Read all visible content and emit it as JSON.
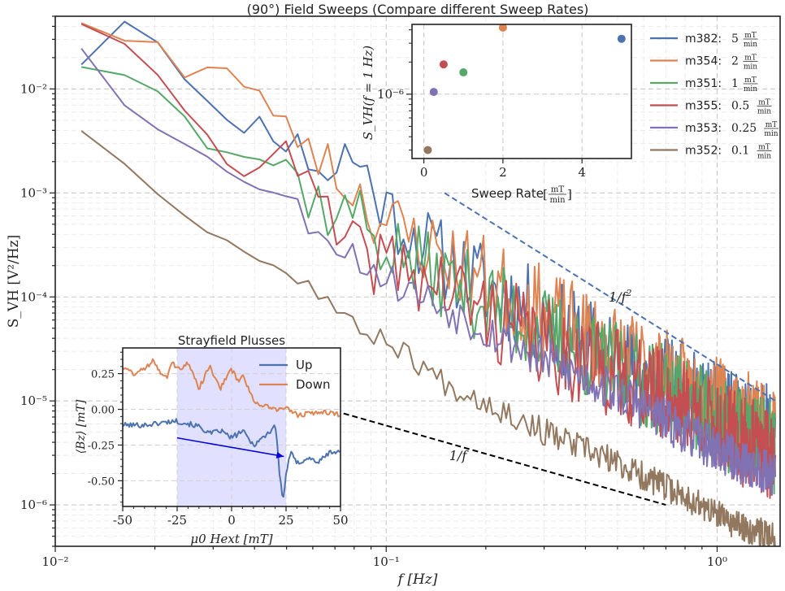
{
  "chart_data": [
    {
      "id": "main",
      "type": "line",
      "title": "(90°) Field Sweeps (Compare different Sweep Rates)",
      "xlabel": "f [Hz]",
      "ylabel": "S_VH [V²/Hz]",
      "xscale": "log",
      "yscale": "log",
      "xlim": [
        0.01,
        1.55
      ],
      "ylim": [
        4e-07,
        0.05
      ],
      "xticks": [
        {
          "value": 0.01,
          "label": "10⁻²"
        },
        {
          "value": 0.1,
          "label": "10⁻¹"
        },
        {
          "value": 1,
          "label": "10⁰"
        }
      ],
      "yticks": [
        {
          "value": 1e-06,
          "label": "10⁻⁶"
        },
        {
          "value": 1e-05,
          "label": "10⁻⁵"
        },
        {
          "value": 0.0001,
          "label": "10⁻⁴"
        },
        {
          "value": 0.001,
          "label": "10⁻³"
        },
        {
          "value": 0.01,
          "label": "10⁻²"
        }
      ],
      "grid": true,
      "legend_position": "top-right",
      "series": [
        {
          "name": "m382: 5 mT/min",
          "label": "m382:",
          "rate": "5",
          "color": "#4c72b0",
          "anchors": [
            [
              0.012,
              0.018
            ],
            [
              0.016,
              0.048
            ],
            [
              0.022,
              0.025
            ],
            [
              0.025,
              0.013
            ],
            [
              0.03,
              0.006
            ],
            [
              0.035,
              0.0037
            ],
            [
              0.04,
              0.0055
            ],
            [
              0.05,
              0.0028
            ],
            [
              0.06,
              0.0022
            ],
            [
              0.07,
              0.0014
            ],
            [
              0.075,
              0.0024
            ],
            [
              0.08,
              0.0023
            ],
            [
              0.1,
              0.0007
            ],
            [
              0.15,
              0.00022
            ],
            [
              0.2,
              0.00013
            ],
            [
              0.3,
              6e-05
            ],
            [
              0.5,
              2.5e-05
            ],
            [
              0.8,
              1.2e-05
            ],
            [
              1.2,
              6e-06
            ],
            [
              1.5,
              5e-06
            ]
          ],
          "jitter": 0.45,
          "seed": 11
        },
        {
          "name": "m354: 2 mT/min",
          "label": "m354:",
          "rate": "2",
          "color": "#dd8452",
          "anchors": [
            [
              0.012,
              0.045
            ],
            [
              0.016,
              0.03
            ],
            [
              0.02,
              0.03
            ],
            [
              0.025,
              0.012
            ],
            [
              0.03,
              0.016
            ],
            [
              0.035,
              0.013
            ],
            [
              0.04,
              0.01
            ],
            [
              0.05,
              0.0045
            ],
            [
              0.06,
              0.0032
            ],
            [
              0.07,
              0.0016
            ],
            [
              0.08,
              0.0011
            ],
            [
              0.1,
              0.0005
            ],
            [
              0.15,
              0.00025
            ],
            [
              0.2,
              0.00015
            ],
            [
              0.3,
              7e-05
            ],
            [
              0.5,
              3e-05
            ],
            [
              0.8,
              1.4e-05
            ],
            [
              1.2,
              7e-06
            ],
            [
              1.5,
              5.5e-06
            ]
          ],
          "jitter": 0.45,
          "seed": 23
        },
        {
          "name": "m351: 1 mT/min",
          "label": "m351:",
          "rate": "1",
          "color": "#55a868",
          "anchors": [
            [
              0.012,
              0.017
            ],
            [
              0.02,
              0.011
            ],
            [
              0.025,
              0.006
            ],
            [
              0.03,
              0.0026
            ],
            [
              0.035,
              0.0027
            ],
            [
              0.04,
              0.0021
            ],
            [
              0.05,
              0.0019
            ],
            [
              0.06,
              0.0009
            ],
            [
              0.07,
              0.0006
            ],
            [
              0.08,
              0.0007
            ],
            [
              0.1,
              0.0003
            ],
            [
              0.15,
              0.00015
            ],
            [
              0.2,
              9e-05
            ],
            [
              0.3,
              4.5e-05
            ],
            [
              0.5,
              2e-05
            ],
            [
              0.8,
              1e-05
            ],
            [
              1.2,
              4.5e-06
            ],
            [
              1.5,
              3.5e-06
            ]
          ],
          "jitter": 0.45,
          "seed": 37
        },
        {
          "name": "m355: 0.5 mT/min",
          "label": "m355:",
          "rate": "0.5",
          "color": "#c44e52",
          "anchors": [
            [
              0.012,
              0.044
            ],
            [
              0.016,
              0.025
            ],
            [
              0.02,
              0.013
            ],
            [
              0.025,
              0.0065
            ],
            [
              0.03,
              0.0028
            ],
            [
              0.035,
              0.0017
            ],
            [
              0.04,
              0.0018
            ],
            [
              0.045,
              0.0025
            ],
            [
              0.05,
              0.0026
            ],
            [
              0.06,
              0.0009
            ],
            [
              0.07,
              0.0004
            ],
            [
              0.08,
              0.00025
            ],
            [
              0.1,
              0.00022
            ],
            [
              0.15,
              0.00012
            ],
            [
              0.2,
              7e-05
            ],
            [
              0.3,
              3.5e-05
            ],
            [
              0.5,
              1.8e-05
            ],
            [
              0.8,
              9e-06
            ],
            [
              1.2,
              4e-06
            ],
            [
              1.5,
              3e-06
            ]
          ],
          "jitter": 0.45,
          "seed": 41
        },
        {
          "name": "m353: 0.25 mT/min",
          "label": "m353:",
          "rate": "0.25",
          "color": "#8172b3",
          "anchors": [
            [
              0.012,
              0.025
            ],
            [
              0.016,
              0.0075
            ],
            [
              0.02,
              0.0045
            ],
            [
              0.025,
              0.0028
            ],
            [
              0.03,
              0.002
            ],
            [
              0.035,
              0.0015
            ],
            [
              0.04,
              0.0012
            ],
            [
              0.05,
              0.0009
            ],
            [
              0.06,
              0.0005
            ],
            [
              0.08,
              0.00025
            ],
            [
              0.1,
              0.00015
            ],
            [
              0.15,
              8e-05
            ],
            [
              0.2,
              5e-05
            ],
            [
              0.3,
              2.5e-05
            ],
            [
              0.5,
              1.2e-05
            ],
            [
              0.8,
              5e-06
            ],
            [
              1.2,
              2.5e-06
            ],
            [
              1.5,
              2e-06
            ]
          ],
          "jitter": 0.22,
          "seed": 53
        },
        {
          "name": "m352: 0.1 mT/min",
          "label": "m352:",
          "rate": "0.1",
          "color": "#937860",
          "anchors": [
            [
              0.012,
              0.004
            ],
            [
              0.016,
              0.002
            ],
            [
              0.02,
              0.001
            ],
            [
              0.03,
              0.0004
            ],
            [
              0.04,
              0.00025
            ],
            [
              0.05,
              0.00017
            ],
            [
              0.06,
              0.00013
            ],
            [
              0.07,
              8e-05
            ],
            [
              0.08,
              5e-05
            ],
            [
              0.1,
              4e-05
            ],
            [
              0.15,
              1.5e-05
            ],
            [
              0.2,
              1e-05
            ],
            [
              0.3,
              5e-06
            ],
            [
              0.5,
              2.5e-06
            ],
            [
              0.8,
              1.2e-06
            ],
            [
              1.0,
              8e-07
            ],
            [
              1.2,
              6e-07
            ],
            [
              1.5,
              5e-07
            ]
          ],
          "jitter": 0.14,
          "seed": 67
        }
      ],
      "reference_lines": [
        {
          "name": "1/f²",
          "label": "1/f",
          "exp": "2",
          "color": "#4c72b0",
          "label_color": "#3333cc",
          "points": [
            [
              0.15,
              0.001
            ],
            [
              1.5,
              1e-05
            ]
          ],
          "label_at": [
            0.47,
            9e-05
          ]
        },
        {
          "name": "1/f",
          "label": "1/f",
          "exp": "",
          "color": "#000000",
          "label_color": "#222222",
          "points": [
            [
              0.07,
              8e-06
            ],
            [
              0.7,
              1e-06
            ]
          ],
          "label_at": [
            0.155,
            2.7e-06
          ]
        }
      ]
    },
    {
      "id": "inset_rate",
      "type": "scatter",
      "xlabel_prefix": "Sweep Rate",
      "xlabel_num": "mT",
      "xlabel_den": "min",
      "ylabel": "S_VH(f = 1 Hz)",
      "xlim": [
        -0.3,
        5.25
      ],
      "yscale": "log",
      "ylim": [
        2.5e-07,
        4.5e-06
      ],
      "xticks": [
        "0",
        "2",
        "4"
      ],
      "xtick_values": [
        0,
        2,
        4
      ],
      "yticks": [
        {
          "value": 1e-06,
          "label": "10⁻⁶"
        }
      ],
      "points": [
        {
          "rate": 5,
          "value": 3.3e-06,
          "color": "#4c72b0"
        },
        {
          "rate": 2,
          "value": 4.2e-06,
          "color": "#dd8452"
        },
        {
          "rate": 1,
          "value": 1.6e-06,
          "color": "#55a868"
        },
        {
          "rate": 0.5,
          "value": 1.9e-06,
          "color": "#c44e52"
        },
        {
          "rate": 0.25,
          "value": 1.05e-06,
          "color": "#8172b3"
        },
        {
          "rate": 0.1,
          "value": 3e-07,
          "color": "#937860"
        }
      ]
    },
    {
      "id": "inset_strayfield",
      "type": "line",
      "title": "Strayfield Plusses",
      "xlabel": "μ0 Hext [mT]",
      "ylabel": "⟨Bz⟩ [mT]",
      "xlim": [
        -50,
        50
      ],
      "ylim": [
        -0.68,
        0.43
      ],
      "xticks": [
        "-50",
        "-25",
        "0",
        "25",
        "50"
      ],
      "xtick_values": [
        -50,
        -25,
        0,
        25,
        50
      ],
      "yticks": [
        "0.25",
        "0.00",
        "-0.25",
        "-0.50"
      ],
      "ytick_values": [
        0.25,
        0.0,
        -0.25,
        -0.5
      ],
      "highlight_span": [
        -25,
        25
      ],
      "arrow": {
        "from": [
          -25,
          -0.2
        ],
        "to": [
          24,
          -0.33
        ],
        "color": "#0000dd"
      },
      "series": [
        {
          "name": "Up",
          "color": "#4c72b0",
          "anchors": [
            [
              -50,
              -0.11
            ],
            [
              -40,
              -0.11
            ],
            [
              -30,
              -0.09
            ],
            [
              -26,
              -0.08
            ],
            [
              -20,
              -0.1
            ],
            [
              -15,
              -0.12
            ],
            [
              -10,
              -0.17
            ],
            [
              -5,
              -0.15
            ],
            [
              0,
              -0.2
            ],
            [
              5,
              -0.15
            ],
            [
              10,
              -0.25
            ],
            [
              15,
              -0.19
            ],
            [
              18,
              -0.15
            ],
            [
              20,
              -0.1
            ],
            [
              21,
              -0.25
            ],
            [
              22,
              -0.45
            ],
            [
              23,
              -0.58
            ],
            [
              24,
              -0.62
            ],
            [
              25,
              -0.45
            ],
            [
              27,
              -0.3
            ],
            [
              30,
              -0.38
            ],
            [
              35,
              -0.34
            ],
            [
              40,
              -0.37
            ],
            [
              45,
              -0.3
            ],
            [
              50,
              -0.3
            ]
          ],
          "jitter": 0.018,
          "seed": 101
        },
        {
          "name": "Down",
          "color": "#dd8452",
          "anchors": [
            [
              -50,
              0.3
            ],
            [
              -45,
              0.25
            ],
            [
              -40,
              0.28
            ],
            [
              -36,
              0.35
            ],
            [
              -33,
              0.27
            ],
            [
              -30,
              0.22
            ],
            [
              -27,
              0.33
            ],
            [
              -25,
              0.28
            ],
            [
              -20,
              0.32
            ],
            [
              -15,
              0.15
            ],
            [
              -10,
              0.3
            ],
            [
              -5,
              0.15
            ],
            [
              0,
              0.28
            ],
            [
              3,
              0.2
            ],
            [
              5,
              0.23
            ],
            [
              8,
              0.15
            ],
            [
              10,
              0.05
            ],
            [
              15,
              0.03
            ],
            [
              20,
              0.0
            ],
            [
              25,
              0.01
            ],
            [
              30,
              -0.04
            ],
            [
              35,
              -0.03
            ],
            [
              40,
              -0.02
            ],
            [
              45,
              -0.02
            ],
            [
              50,
              -0.04
            ]
          ],
          "jitter": 0.018,
          "seed": 131
        }
      ]
    }
  ]
}
